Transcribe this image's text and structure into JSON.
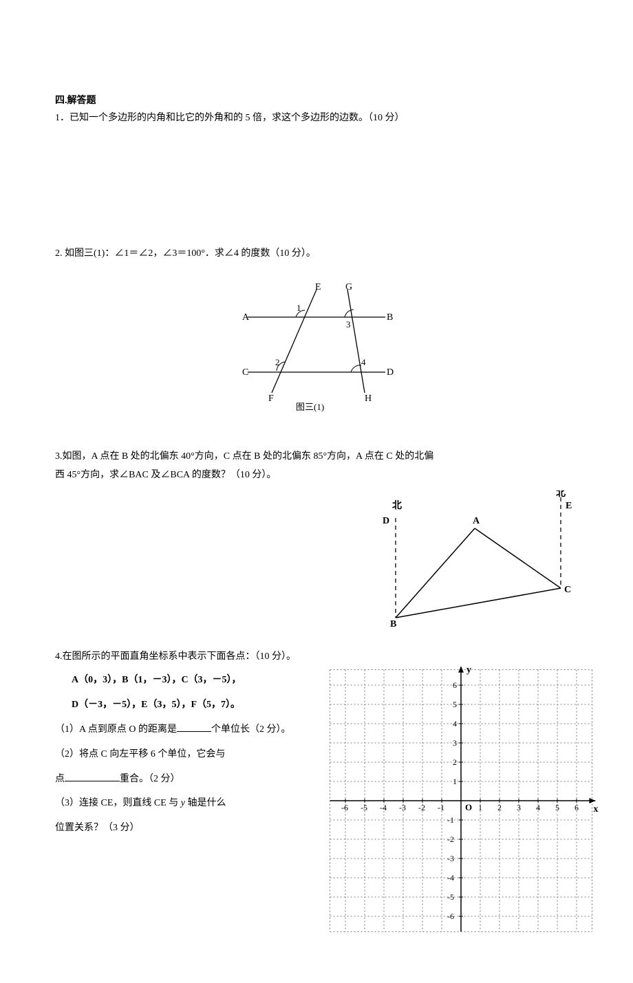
{
  "section_title": "四.解答题",
  "q1": {
    "text": "1．已知一个多边形的内角和比它的外角和的 5 倍，求这个多边形的边数。（10 分）"
  },
  "q2": {
    "text": "2.  如图三(1)：∠1＝∠2，∠3＝100°．求∠4 的度数（10 分）。",
    "figure_caption": "图三(1)",
    "labels": {
      "A": "A",
      "B": "B",
      "C": "C",
      "D": "D",
      "E": "E",
      "F": "F",
      "G": "G",
      "H": "H",
      "a1": "1",
      "a2": "2",
      "a3": "3",
      "a4": "4"
    }
  },
  "q3": {
    "line1": "3.如图，A 点在 B 处的北偏东 40°方向，C 点在 B 处的北偏东 85°方向，A 点在 C 处的北偏",
    "line2": "西 45°方向，求∠BAC 及∠BCA 的度数？（10 分）。",
    "labels": {
      "A": "A",
      "B": "B",
      "C": "C",
      "D": "D",
      "E": "E",
      "north": "北"
    }
  },
  "q4": {
    "title": "4.在图所示的平面直角坐标系中表示下面各点：（10 分）。",
    "points_line1": "A（0，3），B（1，－3），C（3，－5），",
    "points_line2": "D（－3，－5），E（3，5），F（5，7）。",
    "sub1_a": "（1）A 点到原点 O 的距离是",
    "sub1_b": "个单位长（2 分）。",
    "sub2_a": "（2）将点 C 向左平移 6 个单位，它会与",
    "sub2_b": "点",
    "sub2_c": "重合。（2 分）",
    "sub3_a": "（3）连接 CE，则直线 CE 与 ",
    "sub3_y": "y",
    "sub3_b": " 轴是什么",
    "sub3_c": "位置关系？（3 分）",
    "axis_x": "x",
    "axis_y": "y",
    "origin": "O",
    "grid": {
      "min": -6,
      "max": 6,
      "cell": 28
    },
    "tick_labels_neg": [
      "-6",
      "-5",
      "-4",
      "-3",
      "-2",
      "-1"
    ],
    "tick_labels_pos": [
      "1",
      "2",
      "3",
      "4",
      "5",
      "6"
    ]
  },
  "colors": {
    "text": "#000000",
    "bg": "#ffffff",
    "grid_dash": "#888888"
  }
}
